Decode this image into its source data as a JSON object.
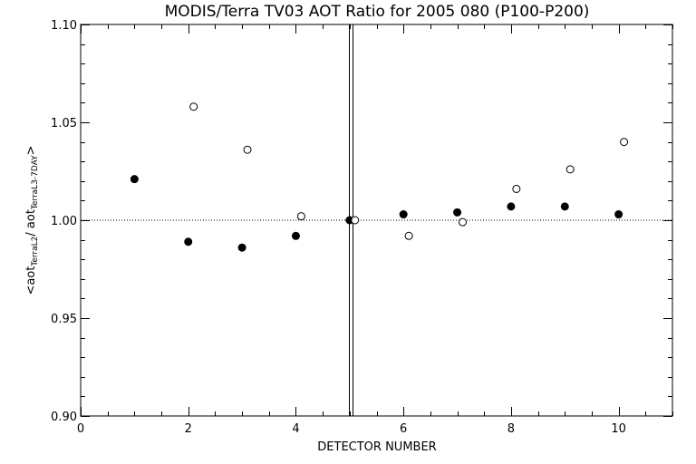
{
  "chart_data": {
    "type": "scatter",
    "title": "MODIS/Terra TV03 AOT Ratio for 2005 080 (P100-P200)",
    "xlabel": "DETECTOR NUMBER",
    "ylabel": {
      "prefix": "<aot",
      "sub1": "TerraL2",
      "mid": "/ aot",
      "sub2": "TerraL3-7DAY",
      "suffix": ">"
    },
    "xlim": [
      0,
      11
    ],
    "ylim": [
      0.9,
      1.1
    ],
    "xticks": [
      0,
      2,
      4,
      6,
      8,
      10
    ],
    "xtick_labels": [
      "0",
      "2",
      "4",
      "6",
      "8",
      "10"
    ],
    "yticks": [
      0.9,
      0.95,
      1.0,
      1.05,
      1.1
    ],
    "ytick_labels": [
      "0.90",
      "0.95",
      "1.00",
      "1.05",
      "1.10"
    ],
    "reference_line_y": 1.0,
    "vertical_lines_x": [
      4.98,
      5.06
    ],
    "series": [
      {
        "marker": "filled-circle",
        "x": [
          1,
          2,
          3,
          4,
          5,
          6,
          7,
          8,
          9,
          10
        ],
        "y": [
          1.021,
          0.989,
          0.986,
          0.992,
          1.0,
          1.003,
          1.004,
          1.007,
          1.007,
          1.003
        ]
      },
      {
        "marker": "open-circle",
        "x": [
          2.1,
          3.1,
          4.1,
          5.1,
          6.1,
          7.1,
          8.1,
          9.1,
          10.1
        ],
        "y": [
          1.058,
          1.036,
          1.002,
          1.0,
          0.992,
          0.999,
          1.016,
          1.026,
          1.04
        ]
      }
    ]
  }
}
